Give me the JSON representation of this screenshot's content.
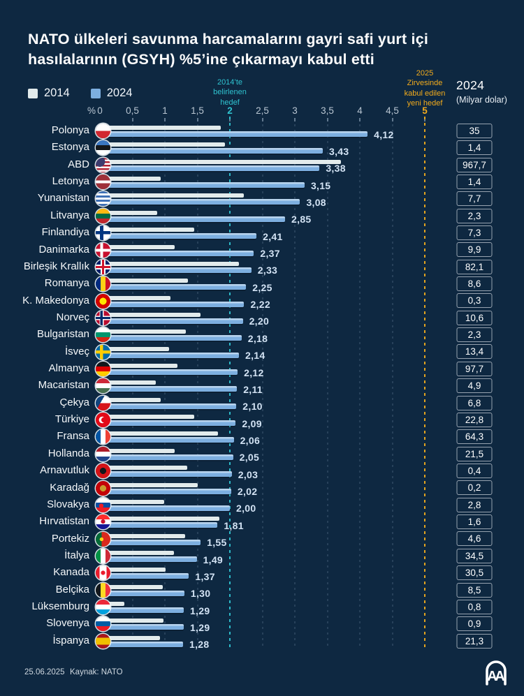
{
  "title": "NATO ülkeleri savunma harcamalarını gayri safi yurt içi hasılalarının (GSYH) %5’ine çıkarmayı kabul etti",
  "colors": {
    "background": "#0e2841",
    "bar_2014": "#e2ebec",
    "bar_2024": "#7dafe0",
    "bar_2024_highlight": "#b9d4ee",
    "value_label": "#d3e3f4",
    "axis_text": "#b9c6d2",
    "teal_target": "#2fc3d0",
    "yellow_target": "#f2ab1c",
    "box_border": "#97a3b0",
    "text_white": "#f5f8fa"
  },
  "legend": {
    "items": [
      {
        "label": "2014",
        "color": "#e2ebec"
      },
      {
        "label": "2024",
        "color": "#7dafe0"
      }
    ]
  },
  "axis": {
    "unit_label": "%",
    "ticks": [
      {
        "label": "0",
        "value": 0,
        "highlight": null
      },
      {
        "label": "0,5",
        "value": 0.5,
        "highlight": null
      },
      {
        "label": "1",
        "value": 1,
        "highlight": null
      },
      {
        "label": "1,5",
        "value": 1.5,
        "highlight": null
      },
      {
        "label": "2",
        "value": 2,
        "highlight": "teal"
      },
      {
        "label": "2,5",
        "value": 2.5,
        "highlight": null
      },
      {
        "label": "3",
        "value": 3,
        "highlight": null
      },
      {
        "label": "3,5",
        "value": 3.5,
        "highlight": null
      },
      {
        "label": "4",
        "value": 4,
        "highlight": null
      },
      {
        "label": "4,5",
        "value": 4.5,
        "highlight": null
      },
      {
        "label": "5",
        "value": 5,
        "highlight": "yellow"
      }
    ],
    "max": 5
  },
  "annotations": {
    "target2014": {
      "lines": [
        "2014’te",
        "belirlenen",
        "hedef"
      ],
      "value": 2,
      "color": "#2fc3d0"
    },
    "target2025": {
      "lines": [
        "2025",
        "Zirvesinde",
        "kabul edilen",
        "yeni hedef"
      ],
      "value": 5,
      "color": "#f2ab1c"
    }
  },
  "right_column_header": {
    "line1": "2024",
    "line2": "(Milyar dolar)"
  },
  "countries": [
    {
      "name": "Polonya",
      "pct_2014_est": 1.86,
      "pct_2024": 4.12,
      "pct_2024_label": "4,12",
      "spend_2024_label": "35",
      "flag_name": "poland-flag",
      "flag_css": "linear-gradient(#ffffff 0 50%, #d22730 50%)"
    },
    {
      "name": "Estonya",
      "pct_2014_est": 1.93,
      "pct_2024": 3.43,
      "pct_2024_label": "3,43",
      "spend_2024_label": "1,4",
      "flag_name": "estonia-flag",
      "flag_css": "linear-gradient(#3a77c2 0 34%, #14181c 34% 67%, #ffffff 67%)"
    },
    {
      "name": "ABD",
      "pct_2014_est": 3.71,
      "pct_2024": 3.38,
      "pct_2024_label": "3,38",
      "spend_2024_label": "967,7",
      "flag_name": "usa-flag",
      "flag_css": "radial-gradient(circle at 28% 26%, #3c3b6e 0 34%, rgba(0,0,0,0) 35%), repeating-linear-gradient(#b22234 0 2.5px, #ffffff 2.5px 5px)"
    },
    {
      "name": "Letonya",
      "pct_2014_est": 0.94,
      "pct_2024": 3.15,
      "pct_2024_label": "3,15",
      "spend_2024_label": "1,4",
      "flag_name": "latvia-flag",
      "flag_css": "linear-gradient(#9e3039 0 40%, #ffffff 40% 60%, #9e3039 60%)"
    },
    {
      "name": "Yunanistan",
      "pct_2014_est": 2.21,
      "pct_2024": 3.08,
      "pct_2024_label": "3,08",
      "spend_2024_label": "7,7",
      "flag_name": "greece-flag",
      "flag_css": "repeating-linear-gradient(#3d6fb5 0 3px, #ffffff 3px 6px)"
    },
    {
      "name": "Litvanya",
      "pct_2014_est": 0.88,
      "pct_2024": 2.85,
      "pct_2024_label": "2,85",
      "spend_2024_label": "2,3",
      "flag_name": "lithuania-flag",
      "flag_css": "linear-gradient(#fdb913 0 34%, #006a44 34% 67%, #c1272d 67%)"
    },
    {
      "name": "Finlandiya",
      "pct_2014_est": 1.45,
      "pct_2024": 2.41,
      "pct_2024_label": "2,41",
      "spend_2024_label": "7,3",
      "flag_name": "finland-flag",
      "flag_css": "linear-gradient(0deg, rgba(0,0,0,0) 0 40%, #003580 40% 62%, rgba(0,0,0,0) 62%), linear-gradient(90deg, #ffffff 0 28%, #003580 28% 52%, #ffffff 52%)"
    },
    {
      "name": "Danimarka",
      "pct_2014_est": 1.15,
      "pct_2024": 2.37,
      "pct_2024_label": "2,37",
      "spend_2024_label": "9,9",
      "flag_name": "denmark-flag",
      "flag_css": "linear-gradient(0deg, rgba(0,0,0,0) 0 40%, #ffffff 40% 60%, rgba(0,0,0,0) 60%), linear-gradient(90deg, #c8102e 0 30%, #ffffff 30% 50%, #c8102e 50%)"
    },
    {
      "name": "Birleşik Krallık",
      "pct_2014_est": 2.14,
      "pct_2024": 2.33,
      "pct_2024_label": "2,33",
      "spend_2024_label": "82,1",
      "flag_name": "uk-flag",
      "flag_css": "linear-gradient(0deg, rgba(0,0,0,0) 0 42%, #cf142b 42% 58%, rgba(0,0,0,0) 58%), linear-gradient(90deg, rgba(0,0,0,0) 0 42%, #cf142b 42% 58%, rgba(0,0,0,0) 58%), linear-gradient(0deg, rgba(0,0,0,0) 0 34%, #ffffff 34% 66%, rgba(0,0,0,0) 66%), linear-gradient(90deg, #012169 0 34%, #ffffff 34% 66%, #012169 66%)"
    },
    {
      "name": "Romanya",
      "pct_2014_est": 1.35,
      "pct_2024": 2.25,
      "pct_2024_label": "2,25",
      "spend_2024_label": "8,6",
      "flag_name": "romania-flag",
      "flag_css": "linear-gradient(90deg, #002b7f 0 34%, #fcd116 34% 67%, #ce1126 67%)"
    },
    {
      "name": "K. Makedonya",
      "pct_2014_est": 1.09,
      "pct_2024": 2.22,
      "pct_2024_label": "2,22",
      "spend_2024_label": "0,3",
      "flag_name": "north-macedonia-flag",
      "flag_css": "radial-gradient(circle, #ffe600 0 33%, #d20000 34%)"
    },
    {
      "name": "Norveç",
      "pct_2014_est": 1.55,
      "pct_2024": 2.2,
      "pct_2024_label": "2,20",
      "spend_2024_label": "10,6",
      "flag_name": "norway-flag",
      "flag_css": "linear-gradient(0deg, rgba(0,0,0,0) 0 42%, #002868 42% 58%, rgba(0,0,0,0) 58%), linear-gradient(90deg, rgba(0,0,0,0) 0 32%, #002868 32% 48%, rgba(0,0,0,0) 48%), linear-gradient(0deg, rgba(0,0,0,0) 0 36%, #ffffff 36% 64%, rgba(0,0,0,0) 64%), linear-gradient(90deg, #ba0c2f 0 26%, #ffffff 26% 54%, #ba0c2f 54%)"
    },
    {
      "name": "Bulgaristan",
      "pct_2014_est": 1.32,
      "pct_2024": 2.18,
      "pct_2024_label": "2,18",
      "spend_2024_label": "2,3",
      "flag_name": "bulgaria-flag",
      "flag_css": "linear-gradient(#ffffff 0 34%, #00966e 34% 67%, #d62612 67%)"
    },
    {
      "name": "İsveç",
      "pct_2014_est": 1.06,
      "pct_2024": 2.14,
      "pct_2024_label": "2,14",
      "spend_2024_label": "13,4",
      "flag_name": "sweden-flag",
      "flag_css": "linear-gradient(0deg, rgba(0,0,0,0) 0 40%, #fecc02 40% 62%, rgba(0,0,0,0) 62%), linear-gradient(90deg, #006aa7 0 28%, #fecc02 28% 50%, #006aa7 50%)"
    },
    {
      "name": "Almanya",
      "pct_2014_est": 1.19,
      "pct_2024": 2.12,
      "pct_2024_label": "2,12",
      "spend_2024_label": "97,7",
      "flag_name": "germany-flag",
      "flag_css": "linear-gradient(#14181c 0 34%, #dd0000 34% 67%, #ffce00 67%)"
    },
    {
      "name": "Macaristan",
      "pct_2014_est": 0.86,
      "pct_2024": 2.11,
      "pct_2024_label": "2,11",
      "spend_2024_label": "4,9",
      "flag_name": "hungary-flag",
      "flag_css": "linear-gradient(#ce2939 0 34%, #ffffff 34% 67%, #477050 67%)"
    },
    {
      "name": "Çekya",
      "pct_2014_est": 0.94,
      "pct_2024": 2.1,
      "pct_2024_label": "2,10",
      "spend_2024_label": "6,8",
      "flag_name": "czechia-flag",
      "flag_css": "linear-gradient(120deg, #11457e 0 38%, rgba(0,0,0,0) 38%), linear-gradient(#ffffff 0 50%, #d7141a 50%)"
    },
    {
      "name": "Türkiye",
      "pct_2014_est": 1.45,
      "pct_2024": 2.09,
      "pct_2024_label": "2,09",
      "spend_2024_label": "22,8",
      "flag_name": "turkiye-flag",
      "flag_css": "radial-gradient(circle at 57% 50%, #e30a17 0 24%, rgba(0,0,0,0) 25%), radial-gradient(circle at 45% 50%, #ffffff 0 30%, rgba(0,0,0,0) 31%), linear-gradient(#e30a17 0 100%)"
    },
    {
      "name": "Fransa",
      "pct_2014_est": 1.82,
      "pct_2024": 2.06,
      "pct_2024_label": "2,06",
      "spend_2024_label": "64,3",
      "flag_name": "france-flag",
      "flag_css": "linear-gradient(90deg, #0055a4 0 34%, #ffffff 34% 67%, #ef4135 67%)"
    },
    {
      "name": "Hollanda",
      "pct_2014_est": 1.15,
      "pct_2024": 2.05,
      "pct_2024_label": "2,05",
      "spend_2024_label": "21,5",
      "flag_name": "netherlands-flag",
      "flag_css": "linear-gradient(#ae1c28 0 34%, #ffffff 34% 67%, #21468b 67%)"
    },
    {
      "name": "Arnavutluk",
      "pct_2014_est": 1.34,
      "pct_2024": 2.03,
      "pct_2024_label": "2,03",
      "spend_2024_label": "0,4",
      "flag_name": "albania-flag",
      "flag_css": "radial-gradient(circle, #14181c 0 30%, #d41317 31%)"
    },
    {
      "name": "Karadağ",
      "pct_2014_est": 1.5,
      "pct_2024": 2.02,
      "pct_2024_label": "2,02",
      "spend_2024_label": "0,2",
      "flag_name": "montenegro-flag",
      "flag_css": "radial-gradient(circle, #c89b2e 0 30%, #c40308 31%)"
    },
    {
      "name": "Slovakya",
      "pct_2014_est": 0.99,
      "pct_2024": 2.0,
      "pct_2024_label": "2,00",
      "spend_2024_label": "2,8",
      "flag_name": "slovakia-flag",
      "flag_css": "radial-gradient(circle at 38% 55%, #ee1c25 0 18%, rgba(0,0,0,0) 19%), linear-gradient(#ffffff 0 34%, #0b4ea2 34% 67%, #ee1c25 67%)"
    },
    {
      "name": "Hırvatistan",
      "pct_2014_est": 1.84,
      "pct_2024": 1.81,
      "pct_2024_label": "1,81",
      "spend_2024_label": "1,6",
      "flag_name": "croatia-flag",
      "flag_css": "radial-gradient(circle at 50% 48%, #c8102e 0 20%, rgba(0,0,0,0) 21%), linear-gradient(#ff2b2b 0 34%, #ffffff 34% 67%, #171796 67%)"
    },
    {
      "name": "Portekiz",
      "pct_2014_est": 1.31,
      "pct_2024": 1.55,
      "pct_2024_label": "1,55",
      "spend_2024_label": "4,6",
      "flag_name": "portugal-flag",
      "flag_css": "radial-gradient(circle at 40% 50%, #fcd116 0 16%, rgba(0,0,0,0) 17%), linear-gradient(90deg, #046a38 0 40%, #da291c 40%)"
    },
    {
      "name": "İtalya",
      "pct_2014_est": 1.14,
      "pct_2024": 1.49,
      "pct_2024_label": "1,49",
      "spend_2024_label": "34,5",
      "flag_name": "italy-flag",
      "flag_css": "linear-gradient(90deg, #009246 0 34%, #ffffff 34% 67%, #ce2b37 67%)"
    },
    {
      "name": "Kanada",
      "pct_2014_est": 1.01,
      "pct_2024": 1.37,
      "pct_2024_label": "1,37",
      "spend_2024_label": "30,5",
      "flag_name": "canada-flag",
      "flag_css": "radial-gradient(circle, #eb1c2d 0 20%, rgba(0,0,0,0) 21%), linear-gradient(90deg, #eb1c2d 0 27%, #ffffff 27% 73%, #eb1c2d 73%)"
    },
    {
      "name": "Belçika",
      "pct_2014_est": 0.97,
      "pct_2024": 1.3,
      "pct_2024_label": "1,30",
      "spend_2024_label": "8,5",
      "flag_name": "belgium-flag",
      "flag_css": "linear-gradient(90deg, #14181c 0 34%, #fdda24 34% 67%, #ef3340 67%)"
    },
    {
      "name": "Lüksemburg",
      "pct_2014_est": 0.38,
      "pct_2024": 1.29,
      "pct_2024_label": "1,29",
      "spend_2024_label": "0,8",
      "flag_name": "luxembourg-flag",
      "flag_css": "linear-gradient(#ed2939 0 34%, #ffffff 34% 67%, #00a1de 67%)"
    },
    {
      "name": "Slovenya",
      "pct_2014_est": 0.98,
      "pct_2024": 1.29,
      "pct_2024_label": "1,29",
      "spend_2024_label": "0,9",
      "flag_name": "slovenia-flag",
      "flag_css": "linear-gradient(#ffffff 0 34%, #005da4 34% 67%, #ed1c24 67%)"
    },
    {
      "name": "İspanya",
      "pct_2014_est": 0.92,
      "pct_2024": 1.28,
      "pct_2024_label": "1,28",
      "spend_2024_label": "21,3",
      "flag_name": "spain-flag",
      "flag_css": "linear-gradient(#aa151b 0 26%, #f1bf00 26% 74%, #aa151b 74%)"
    }
  ],
  "footer": {
    "date": "25.06.2025",
    "source": "Kaynak: NATO",
    "logo": "AA"
  },
  "chart_data": {
    "type": "bar",
    "orientation": "horizontal",
    "title": "NATO ülkeleri savunma harcamalarını gayri safi yurt içi hasılalarının (GSYH) %5’ine çıkarmayı kabul etti",
    "xlabel": "%",
    "xlim": [
      0,
      5
    ],
    "tick_values": [
      0,
      0.5,
      1,
      1.5,
      2,
      2.5,
      3,
      3.5,
      4,
      4.5,
      5
    ],
    "grid": true,
    "legend_position": "top-left",
    "categories": [
      "Polonya",
      "Estonya",
      "ABD",
      "Letonya",
      "Yunanistan",
      "Litvanya",
      "Finlandiya",
      "Danimarka",
      "Birleşik Krallık",
      "Romanya",
      "K. Makedonya",
      "Norveç",
      "Bulgaristan",
      "İsveç",
      "Almanya",
      "Macaristan",
      "Çekya",
      "Türkiye",
      "Fransa",
      "Hollanda",
      "Arnavutluk",
      "Karadağ",
      "Slovakya",
      "Hırvatistan",
      "Portekiz",
      "İtalya",
      "Kanada",
      "Belçika",
      "Lüksemburg",
      "Slovenya",
      "İspanya"
    ],
    "series": [
      {
        "name": "2014",
        "note": "unlabeled in image, values estimated from bar lengths",
        "values": [
          1.86,
          1.93,
          3.71,
          0.94,
          2.21,
          0.88,
          1.45,
          1.15,
          2.14,
          1.35,
          1.09,
          1.55,
          1.32,
          1.06,
          1.19,
          0.86,
          0.94,
          1.45,
          1.82,
          1.15,
          1.34,
          1.5,
          0.99,
          1.84,
          1.31,
          1.14,
          1.01,
          0.97,
          0.38,
          0.98,
          0.92
        ]
      },
      {
        "name": "2024",
        "values": [
          4.12,
          3.43,
          3.38,
          3.15,
          3.08,
          2.85,
          2.41,
          2.37,
          2.33,
          2.25,
          2.22,
          2.2,
          2.18,
          2.14,
          2.12,
          2.11,
          2.1,
          2.09,
          2.06,
          2.05,
          2.03,
          2.02,
          2.0,
          1.81,
          1.55,
          1.49,
          1.37,
          1.3,
          1.29,
          1.29,
          1.28
        ]
      }
    ],
    "secondary_column": {
      "label": "2024 (Milyar dolar)",
      "values": [
        35,
        1.4,
        967.7,
        1.4,
        7.7,
        2.3,
        7.3,
        9.9,
        82.1,
        8.6,
        0.3,
        10.6,
        2.3,
        13.4,
        97.7,
        4.9,
        6.8,
        22.8,
        64.3,
        21.5,
        0.4,
        0.2,
        2.8,
        1.6,
        4.6,
        34.5,
        30.5,
        8.5,
        0.8,
        0.9,
        21.3
      ]
    },
    "annotations": [
      {
        "text": "2014’te belirlenen hedef",
        "x": 2,
        "color": "#2fc3d0"
      },
      {
        "text": "2025 Zirvesinde kabul edilen yeni hedef",
        "x": 5,
        "color": "#f2ab1c"
      }
    ]
  }
}
